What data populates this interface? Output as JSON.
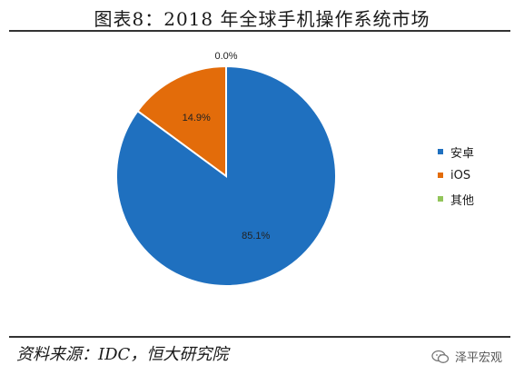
{
  "header": {
    "title": "图表8：2018 年全球手机操作系统市场"
  },
  "chart_data": {
    "type": "pie",
    "title": "图表8：2018 年全球手机操作系统市场",
    "series": [
      {
        "name": "安卓",
        "value": 85.1,
        "label": "85.1%",
        "color": "#1F70BF"
      },
      {
        "name": "iOS",
        "value": 14.9,
        "label": "14.9%",
        "color": "#E36C0A"
      },
      {
        "name": "其他",
        "value": 0.0,
        "label": "0.0%",
        "color": "#92C55A"
      }
    ],
    "legend_placement": "right"
  },
  "footer": {
    "source": "资料来源：IDC，恒大研究院",
    "watermark": "泽平宏观"
  }
}
